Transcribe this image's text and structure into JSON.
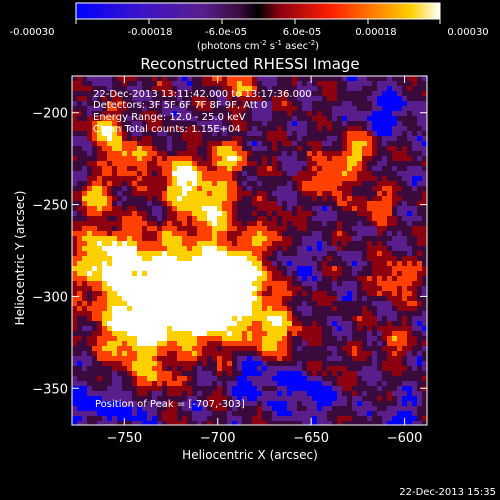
{
  "colorbar": {
    "ticks": [
      "-0.00030",
      "-0.00018",
      "-6.0e-05",
      "6.0e-05",
      "0.00018",
      "0.00030"
    ],
    "units_main": "(photons cm",
    "units_sup1": "-2",
    "units_mid": " s",
    "units_sup2": "-1",
    "units_tail": " asec",
    "units_sup3": "-2",
    "units_close": ")"
  },
  "header": {
    "time_range": "22-Dec-2013 13:11:42.000 to 13:17:36.000",
    "detectors": "Detectors: 3F 5F 6F 7F 8F 9F, Att 0",
    "energy": "Energy Range: 12.0 - 25.0 keV",
    "clean": "Clean    Total counts: 1.15E+04"
  },
  "peak": {
    "label": "Position of Peak = ",
    "value": "[-707,-303]"
  },
  "footer": {
    "timestamp": "22-Dec-2013 15:35"
  },
  "chart_data": {
    "type": "heatmap",
    "title": "Reconstructed RHESSI Image",
    "xlabel": "Heliocentric X (arcsec)",
    "ylabel": "Heliocentric Y (arcsec)",
    "xlim": [
      -778,
      -588
    ],
    "ylim": [
      -370,
      -180
    ],
    "xticks": [
      -750,
      -700,
      -650,
      -600
    ],
    "yticks": [
      -200,
      -250,
      -300,
      -350
    ],
    "colormap": "RHESSI blue-purple-red-yellow-white",
    "cbar_range": [
      -0.0003,
      0.0003
    ],
    "colors": {
      "min": "#0000ff",
      "low": "#5a1e8c",
      "mid_low": "#3a0a3c",
      "mid": "#8c0010",
      "mid_high": "#ff4000",
      "high": "#ffd000",
      "max": "#ffffff"
    },
    "peak_position": [
      -707,
      -303
    ],
    "grid": false
  }
}
